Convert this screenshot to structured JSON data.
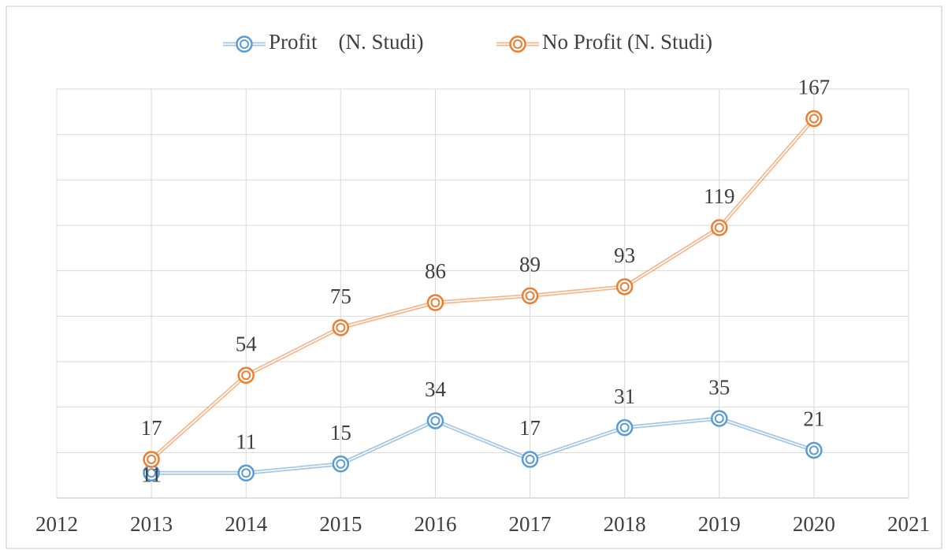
{
  "chart_data": {
    "type": "line",
    "x": [
      2013,
      2014,
      2015,
      2016,
      2017,
      2018,
      2019,
      2020
    ],
    "series": [
      {
        "name": "Profit    (N. Studi)",
        "color": "#5b9bd5",
        "values": [
          11,
          11,
          15,
          34,
          17,
          31,
          35,
          21
        ]
      },
      {
        "name": "No Profit (N. Studi)",
        "color": "#ed7d31",
        "values": [
          17,
          54,
          75,
          86,
          89,
          93,
          119,
          167
        ]
      }
    ],
    "xlim": [
      2012,
      2021
    ],
    "xticks": [
      2012,
      2013,
      2014,
      2015,
      2016,
      2017,
      2018,
      2019,
      2020,
      2021
    ],
    "ylim": [
      0,
      180
    ],
    "yticks": [
      0,
      20,
      40,
      60,
      80,
      100,
      120,
      140,
      160,
      180
    ],
    "grid": true,
    "legend": "top"
  }
}
